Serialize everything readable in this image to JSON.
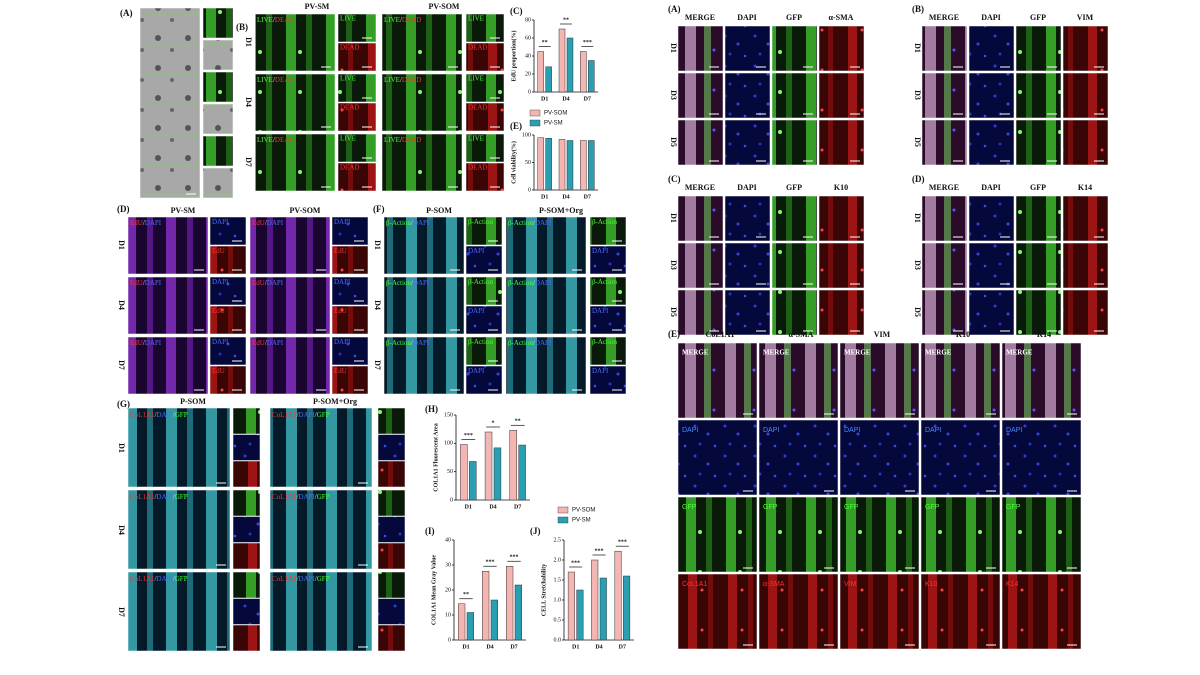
{
  "left": {
    "a": {
      "label": "(A)"
    },
    "slash": "/",
    "b": {
      "label": "(B)",
      "columns": [
        "PV-SM",
        "PV-SOM"
      ],
      "rows": [
        "D1",
        "D4",
        "D7"
      ],
      "live": "LIVE",
      "dead": "DEAD"
    },
    "d": {
      "label": "(D)",
      "columns": [
        "PV-SM",
        "PV-SOM"
      ],
      "rows": [
        "D1",
        "D4",
        "D7"
      ],
      "edu": "EdU",
      "dapi": "DAPI"
    },
    "f": {
      "label": "(F)",
      "columns": [
        "P-SOM",
        "P-SOM+Org"
      ],
      "rows": [
        "D1",
        "D4",
        "D7"
      ],
      "actin": "β-Action",
      "dapi": "DAPI"
    },
    "g": {
      "label": "(G)",
      "columns": [
        "P-SOM",
        "P-SOM+Org"
      ],
      "rows": [
        "D1",
        "D4",
        "D7"
      ],
      "col": "CoL1A1",
      "dapi": "DAPI",
      "gfp": "GFP"
    },
    "charts": {
      "c": {
        "type": "bar",
        "label": "(C)",
        "ylabel": "EdU proportion(%)",
        "categories": [
          "D1",
          "D4",
          "D7"
        ],
        "series": [
          {
            "color": "#f4b6b2",
            "values": [
              45,
              70,
              45
            ]
          },
          {
            "color": "#2a9fb3",
            "values": [
              28,
              60,
              35
            ]
          }
        ],
        "significance": [
          "**",
          "**",
          "***"
        ],
        "ylim": [
          0,
          80
        ],
        "yticks": [
          0,
          20,
          40,
          60,
          80
        ]
      },
      "e": {
        "type": "bar",
        "label": "(E)",
        "ylabel": "Cell viability(%)",
        "categories": [
          "D1",
          "D4",
          "D7"
        ],
        "series": [
          {
            "name": "PV-SOM",
            "color": "#f4b6b2",
            "values": [
              95,
              92,
              90
            ]
          },
          {
            "name": "PV-SM",
            "color": "#2a9fb3",
            "values": [
              94,
              90,
              90
            ]
          }
        ],
        "ylim": [
          0,
          100
        ],
        "yticks": [
          0,
          50,
          100
        ]
      },
      "h": {
        "type": "bar",
        "label": "(H)",
        "ylabel": "COL1A1 Fluorescent Area",
        "categories": [
          "D1",
          "D4",
          "D7"
        ],
        "series": [
          {
            "name": "PV-SOM",
            "color": "#f4b6b2",
            "values": [
              98,
              120,
              123
            ]
          },
          {
            "name": "PV-SM",
            "color": "#2a9fb3",
            "values": [
              68,
              92,
              97
            ]
          }
        ],
        "significance": [
          "***",
          "*",
          "**"
        ],
        "ylim": [
          0,
          150
        ],
        "yticks": [
          0,
          50,
          100,
          150
        ]
      },
      "i": {
        "type": "bar",
        "label": "(I)",
        "ylabel": "COL1A1 Mean Gray Value",
        "categories": [
          "D1",
          "D4",
          "D7"
        ],
        "series": [
          {
            "color": "#f4b6b2",
            "values": [
              14.5,
              27.5,
              29.5
            ]
          },
          {
            "color": "#2a9fb3",
            "values": [
              11,
              16,
              22
            ]
          }
        ],
        "significance": [
          "**",
          "***",
          "***"
        ],
        "ylim": [
          0,
          40
        ],
        "yticks": [
          0,
          10,
          20,
          30,
          40
        ]
      },
      "j": {
        "type": "bar",
        "label": "(J)",
        "ylabel": "CELL Stretchability",
        "categories": [
          "D1",
          "D4",
          "D7"
        ],
        "series": [
          {
            "color": "#f4b6b2",
            "values": [
              1.7,
              2.0,
              2.22
            ]
          },
          {
            "color": "#2a9fb3",
            "values": [
              1.25,
              1.55,
              1.6
            ]
          }
        ],
        "significance": [
          "***",
          "***",
          "***"
        ],
        "ylim": [
          0,
          2.5
        ],
        "yticks": [
          {
            "value": 0,
            "label": "0.0"
          },
          {
            "value": 0.5,
            "label": "0.5"
          },
          {
            "value": 1,
            "label": "1.0"
          },
          {
            "value": 1.5,
            "label": "1.5"
          },
          {
            "value": 2,
            "label": "2.0"
          },
          {
            "value": 2.5,
            "label": "2.5"
          }
        ]
      }
    }
  },
  "right": {
    "grids": [
      {
        "label": "(A)",
        "columns": [
          "MERGE",
          "DAPI",
          "GFP",
          "α-SMA"
        ],
        "rows": [
          "D1",
          "D3",
          "D5"
        ]
      },
      {
        "label": "(B)",
        "columns": [
          "MERGE",
          "DAPI",
          "GFP",
          "VIM"
        ],
        "rows": [
          "D1",
          "D3",
          "D5"
        ]
      },
      {
        "label": "(C)",
        "columns": [
          "MERGE",
          "DAPI",
          "GFP",
          "K10"
        ],
        "rows": [
          "D1",
          "D3",
          "D5"
        ]
      },
      {
        "label": "(D)",
        "columns": [
          "MERGE",
          "DAPI",
          "GFP",
          "K14"
        ],
        "rows": [
          "D1",
          "D3",
          "D5"
        ]
      }
    ],
    "e": {
      "label": "(E)",
      "columns": [
        "CoL1A1",
        "α-SMA",
        "VIM",
        "K10",
        "K14"
      ],
      "rows": [
        "MERGE",
        "DAPI",
        "GFP"
      ]
    }
  }
}
